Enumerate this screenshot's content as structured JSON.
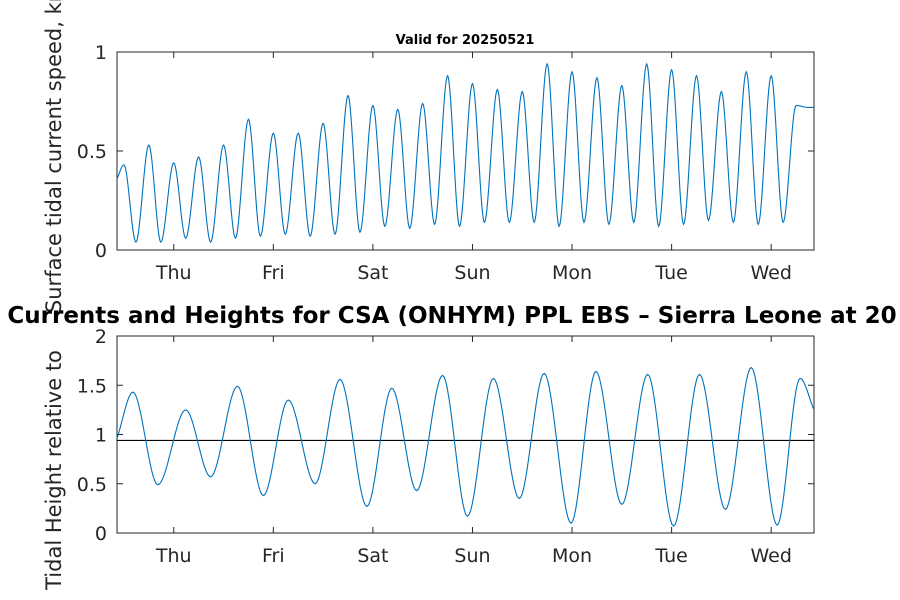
{
  "chart_data": [
    {
      "type": "line",
      "title": "Valid for 20250521",
      "ylabel": "Surface tidal current speed, kn",
      "xlabel": "",
      "xlim": [
        0,
        7
      ],
      "ylim": [
        0,
        1
      ],
      "yticks": [
        0,
        0.5,
        1
      ],
      "ytick_labels": [
        "0",
        "0.5",
        "1"
      ],
      "xtick_positions": [
        0.57,
        1.57,
        2.57,
        3.57,
        4.57,
        5.57,
        6.57
      ],
      "xtick_labels": [
        "Thu",
        "Fri",
        "Sat",
        "Sun",
        "Mon",
        "Tue",
        "Wed"
      ],
      "grid": false,
      "series": [
        {
          "color": "#0072BD",
          "x_unit": "days from plot start",
          "x": [
            0.0,
            0.07,
            0.19,
            0.32,
            0.44,
            0.57,
            0.69,
            0.82,
            0.94,
            1.07,
            1.19,
            1.32,
            1.44,
            1.57,
            1.69,
            1.82,
            1.94,
            2.07,
            2.19,
            2.32,
            2.44,
            2.57,
            2.69,
            2.82,
            2.94,
            3.07,
            3.19,
            3.32,
            3.44,
            3.57,
            3.69,
            3.82,
            3.94,
            4.07,
            4.19,
            4.32,
            4.44,
            4.57,
            4.69,
            4.82,
            4.94,
            5.07,
            5.19,
            5.32,
            5.44,
            5.57,
            5.69,
            5.82,
            5.94,
            6.07,
            6.19,
            6.32,
            6.44,
            6.57,
            6.69,
            6.82,
            6.94,
            7.0
          ],
          "y": [
            0.36,
            0.43,
            0.04,
            0.53,
            0.04,
            0.44,
            0.06,
            0.47,
            0.04,
            0.53,
            0.06,
            0.66,
            0.07,
            0.59,
            0.08,
            0.59,
            0.07,
            0.64,
            0.08,
            0.78,
            0.09,
            0.73,
            0.12,
            0.71,
            0.11,
            0.74,
            0.13,
            0.88,
            0.12,
            0.84,
            0.14,
            0.81,
            0.14,
            0.8,
            0.14,
            0.94,
            0.12,
            0.9,
            0.14,
            0.87,
            0.13,
            0.83,
            0.14,
            0.94,
            0.12,
            0.91,
            0.13,
            0.88,
            0.15,
            0.8,
            0.14,
            0.9,
            0.13,
            0.88,
            0.14,
            0.73,
            0.72,
            0.72
          ]
        }
      ]
    },
    {
      "type": "line",
      "title": "Currents and Heights for CSA (ONHYM) PPL EBS  – Sierra Leone at 20",
      "ylabel": "Tidal Height relative to",
      "xlabel": "",
      "xlim": [
        0,
        7
      ],
      "ylim": [
        0,
        2
      ],
      "yticks": [
        0,
        0.5,
        1,
        1.5,
        2
      ],
      "ytick_labels": [
        "0",
        "0.5",
        "1",
        "1.5",
        "2"
      ],
      "xtick_positions": [
        0.57,
        1.57,
        2.57,
        3.57,
        4.57,
        5.57,
        6.57
      ],
      "xtick_labels": [
        "Thu",
        "Fri",
        "Sat",
        "Sun",
        "Mon",
        "Tue",
        "Wed"
      ],
      "grid": false,
      "reference_line": {
        "y": 0.94,
        "color": "#000000"
      },
      "series": [
        {
          "color": "#0072BD",
          "x_unit": "days from plot start",
          "x": [
            0.0,
            0.16,
            0.41,
            0.69,
            0.94,
            1.21,
            1.47,
            1.72,
            1.99,
            2.24,
            2.51,
            2.76,
            3.01,
            3.27,
            3.52,
            3.78,
            4.04,
            4.29,
            4.56,
            4.81,
            5.07,
            5.33,
            5.59,
            5.85,
            6.11,
            6.37,
            6.63,
            6.86,
            7.0
          ],
          "y": [
            0.96,
            1.43,
            0.49,
            1.25,
            0.57,
            1.49,
            0.38,
            1.35,
            0.5,
            1.56,
            0.27,
            1.47,
            0.43,
            1.6,
            0.17,
            1.57,
            0.35,
            1.62,
            0.1,
            1.64,
            0.29,
            1.61,
            0.07,
            1.61,
            0.24,
            1.68,
            0.08,
            1.57,
            1.25
          ]
        }
      ]
    }
  ]
}
